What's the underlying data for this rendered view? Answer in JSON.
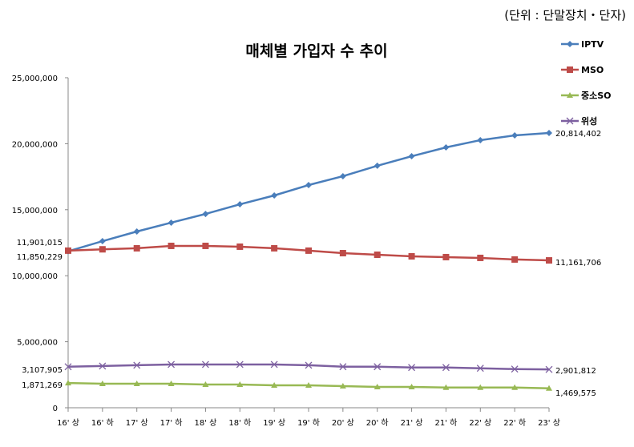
{
  "unit_note": "(단위 : 단말장치・단자)",
  "chart_data": {
    "type": "line",
    "title": "매체별 가입자 수 추이",
    "xlabel": "",
    "ylabel": "",
    "ylim": [
      0,
      25000000
    ],
    "yticks": [
      "0",
      "5,000,000",
      "10,000,000",
      "15,000,000",
      "20,000,000",
      "25,000,000"
    ],
    "ytick_values": [
      0,
      5000000,
      10000000,
      15000000,
      20000000,
      25000000
    ],
    "grid": false,
    "legend_position": "right",
    "categories": [
      "16' 상",
      "16' 하",
      "17' 상",
      "17' 하",
      "18' 상",
      "18' 하",
      "19' 상",
      "19' 하",
      "20' 상",
      "20' 하",
      "21' 상",
      "21' 하",
      "22' 상",
      "22' 하",
      "23' 상"
    ],
    "series": [
      {
        "name": "IPTV",
        "color": "#4a7ebb",
        "marker": "diamond",
        "values": [
          11850229,
          12620000,
          13350000,
          14020000,
          14680000,
          15410000,
          16080000,
          16870000,
          17540000,
          18330000,
          19050000,
          19720000,
          20270000,
          20630000,
          20814402
        ]
      },
      {
        "name": "MSO",
        "color": "#be4b48",
        "marker": "square",
        "values": [
          11901015,
          12000000,
          12080000,
          12260000,
          12260000,
          12200000,
          12080000,
          11900000,
          11710000,
          11590000,
          11470000,
          11410000,
          11350000,
          11230000,
          11161706
        ]
      },
      {
        "name": "중소SO",
        "color": "#98b954",
        "marker": "triangle",
        "values": [
          1871269,
          1820000,
          1820000,
          1820000,
          1760000,
          1760000,
          1700000,
          1700000,
          1640000,
          1580000,
          1580000,
          1530000,
          1530000,
          1530000,
          1469575
        ]
      },
      {
        "name": "위성",
        "color": "#7d60a0",
        "marker": "x",
        "values": [
          3107905,
          3160000,
          3220000,
          3280000,
          3280000,
          3280000,
          3280000,
          3220000,
          3110000,
          3110000,
          3050000,
          3050000,
          2990000,
          2930000,
          2901812
        ]
      }
    ],
    "annotations": {
      "start": [
        "11,901,015",
        "11,850,229",
        "3,107,905",
        "1,871,269"
      ],
      "end": [
        "20,814,402",
        "11,161,706",
        "2,901,812",
        "1,469,575"
      ]
    }
  }
}
